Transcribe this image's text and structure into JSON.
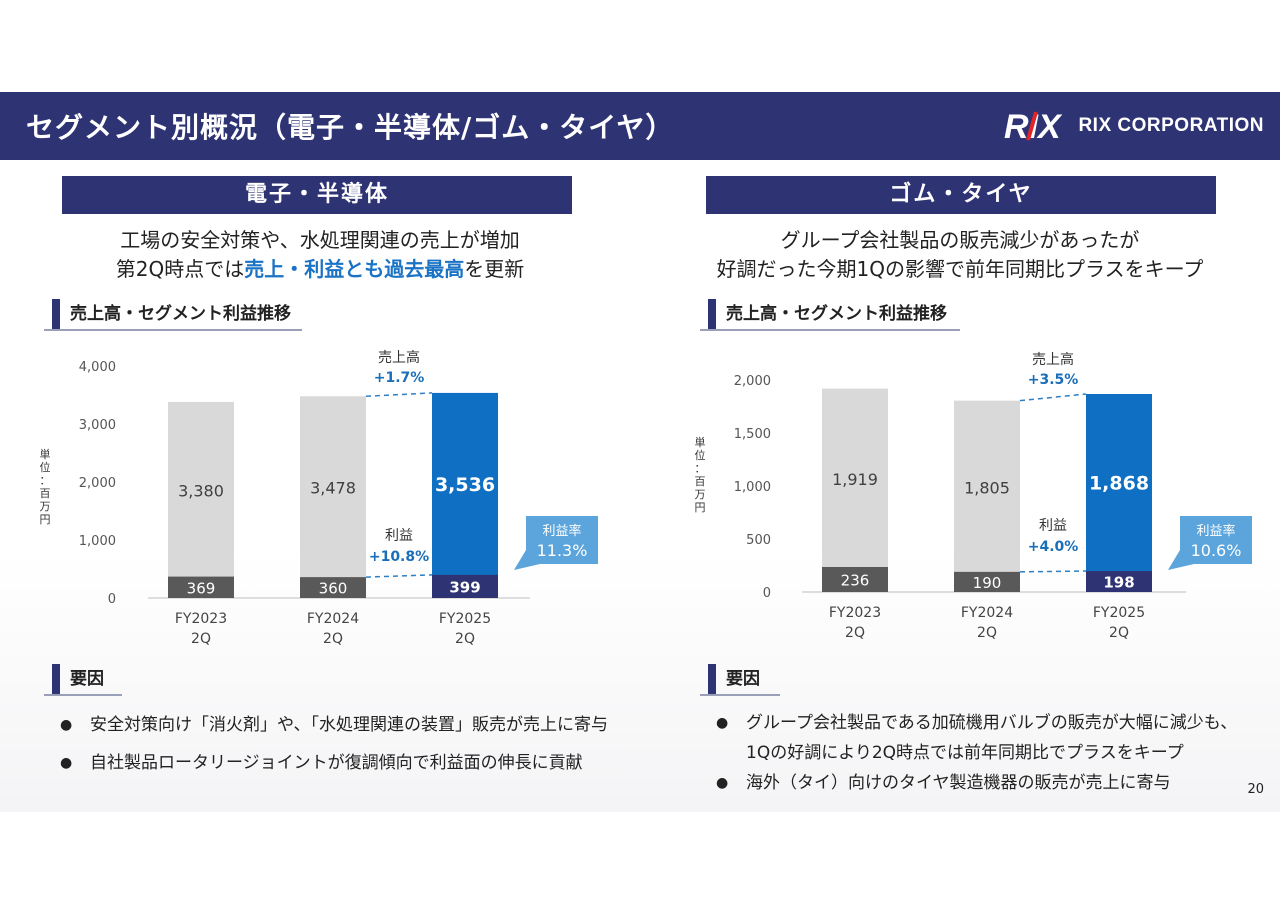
{
  "title": "セグメント別概況（電子・半導体/ゴム・タイヤ）",
  "logo": {
    "mark": "RIX",
    "text": "RIX CORPORATION"
  },
  "page_number": "20",
  "colors": {
    "navy": "#2e3374",
    "blue": "#0f6fc2",
    "gray_bar": "#d9d9d9",
    "dark_bar": "#595959",
    "callout": "#5ba4dc"
  },
  "left": {
    "segment_title": "電子・半導体",
    "summary_line1": "工場の安全対策や、水処理関連の売上が増加",
    "summary_line2_pre": "第2Q時点では",
    "summary_line2_hl": "売上・利益とも過去最高",
    "summary_line2_post": "を更新",
    "section_chart": "売上高・セグメント利益推移",
    "section_factors": "要因",
    "factors": [
      "安全対策向け「消火剤」や、「水処理関連の装置」販売が売上に寄与",
      "自社製品ロータリージョイントが復調傾向で利益面の伸長に貢献"
    ]
  },
  "right": {
    "segment_title": "ゴム・タイヤ",
    "summary_line1": "グループ会社製品の販売減少があったが",
    "summary_line2": "好調だった今期1Qの影響で前年同期比プラスをキープ",
    "section_chart": "売上高・セグメント利益推移",
    "section_factors": "要因",
    "factors": [
      "グループ会社製品である加硫機用バルブの販売が大幅に減少も、",
      "1Qの好調により2Q時点では前年同期比でプラスをキープ",
      "海外（タイ）向けのタイヤ製造機器の販売が売上に寄与"
    ]
  },
  "chart_data": [
    {
      "type": "bar",
      "title": "売上高・セグメント利益推移",
      "unit_label": "単位：百万円",
      "categories": [
        [
          "FY2023",
          "2Q"
        ],
        [
          "FY2024",
          "2Q"
        ],
        [
          "FY2025",
          "2Q"
        ]
      ],
      "series": [
        {
          "name": "売上高",
          "values": [
            3380,
            3478,
            3536
          ],
          "labels": [
            "3,380",
            "3,478",
            "3,536"
          ]
        },
        {
          "name": "利益",
          "values": [
            369,
            360,
            399
          ],
          "labels": [
            "369",
            "360",
            "399"
          ]
        }
      ],
      "ylim": [
        0,
        4000
      ],
      "yticks": [
        0,
        1000,
        2000,
        3000,
        4000
      ],
      "ytick_labels": [
        "0",
        "1,000",
        "2,000",
        "3,000",
        "4,000"
      ],
      "annotations": {
        "sales_label": "売上高",
        "sales_change": "+1.7%",
        "profit_label": "利益",
        "profit_change": "+10.8%",
        "margin_label": "利益率",
        "margin_value": "11.3%"
      }
    },
    {
      "type": "bar",
      "title": "売上高・セグメント利益推移",
      "unit_label": "単位：百万円",
      "categories": [
        [
          "FY2023",
          "2Q"
        ],
        [
          "FY2024",
          "2Q"
        ],
        [
          "FY2025",
          "2Q"
        ]
      ],
      "series": [
        {
          "name": "売上高",
          "values": [
            1919,
            1805,
            1868
          ],
          "labels": [
            "1,919",
            "1,805",
            "1,868"
          ]
        },
        {
          "name": "利益",
          "values": [
            236,
            190,
            198
          ],
          "labels": [
            "236",
            "190",
            "198"
          ]
        }
      ],
      "ylim": [
        0,
        2000
      ],
      "yticks": [
        0,
        500,
        1000,
        1500,
        2000
      ],
      "ytick_labels": [
        "0",
        "500",
        "1,000",
        "1,500",
        "2,000"
      ],
      "annotations": {
        "sales_label": "売上高",
        "sales_change": "+3.5%",
        "profit_label": "利益",
        "profit_change": "+4.0%",
        "margin_label": "利益率",
        "margin_value": "10.6%"
      }
    }
  ]
}
